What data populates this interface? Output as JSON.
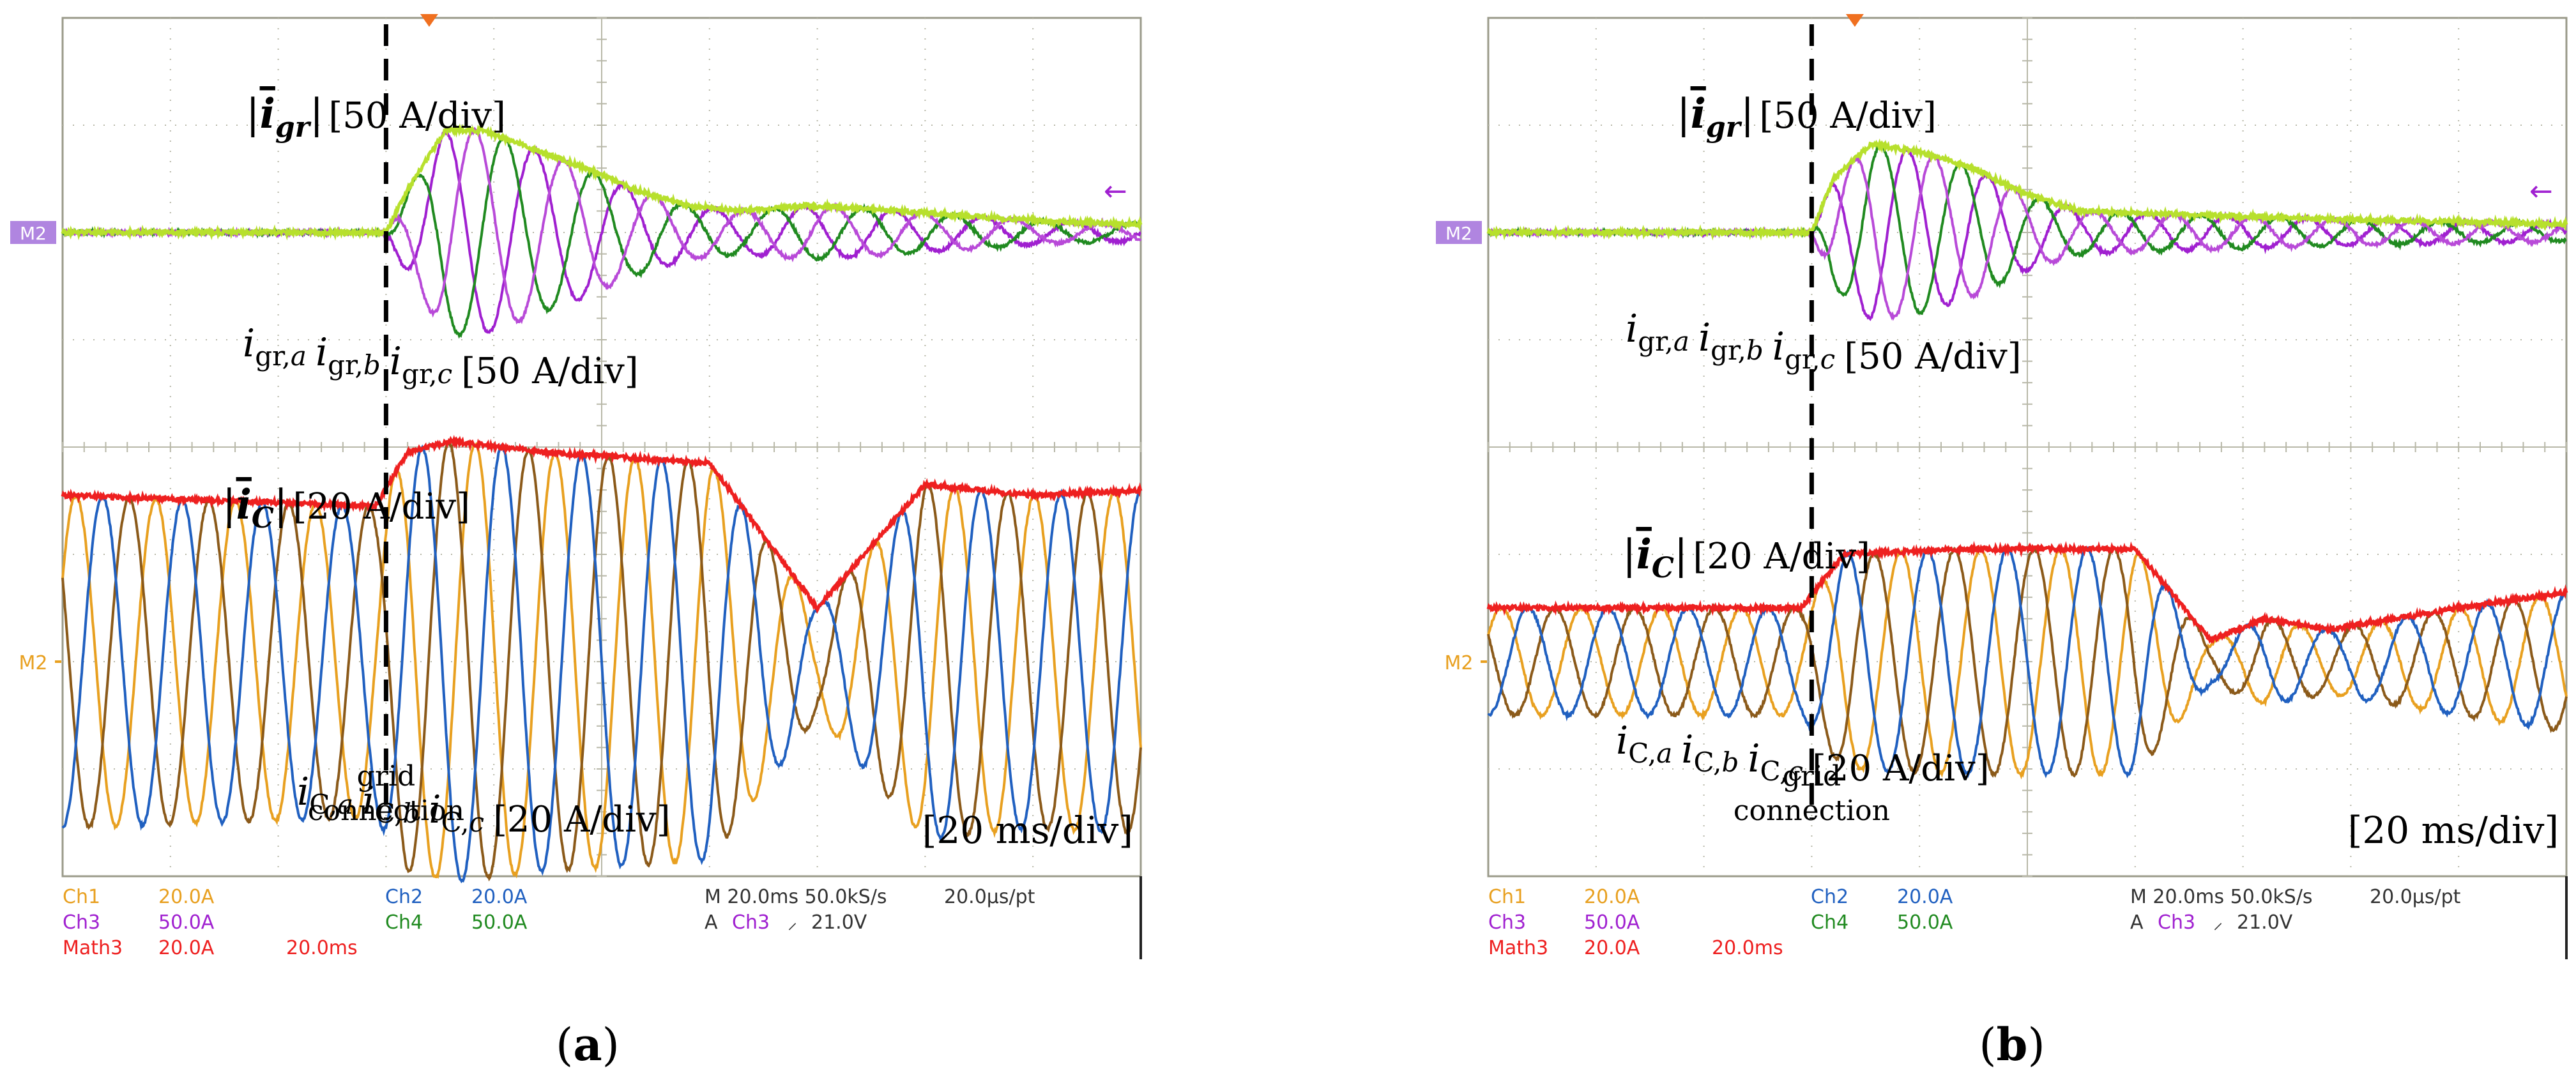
{
  "chart_data": [
    {
      "type": "line",
      "panel_label": "a",
      "title": "",
      "xlabel": "",
      "ylabel": "",
      "grid": true,
      "divisions": {
        "x": 10,
        "y": 8
      },
      "time_div_label": "[20 ms/div]",
      "event": {
        "label_line1": "grid",
        "label_line2": "connection",
        "time_div": 3.0
      },
      "top_traces": {
        "magnitude_label": {
          "symbol": "i",
          "subscript": "gr",
          "scale": "[50 A/div]"
        },
        "phase_label": {
          "a": "i",
          "a_sub": "gr,",
          "a_ph": "a",
          "b": "i",
          "b_sub": "gr,",
          "b_ph": "b",
          "c": "i",
          "c_sub": "gr,",
          "c_ph": "c",
          "scale": "[50 A/div]"
        },
        "marker_label": "M2",
        "trigger_level_mark": "←",
        "series": [
          {
            "name": "|igr|",
            "color": "#b7e02d",
            "unit": "div",
            "kind": "envelope",
            "points": [
              [
                0,
                0
              ],
              [
                3.0,
                0
              ],
              [
                3.2,
                0.4
              ],
              [
                3.55,
                0.95
              ],
              [
                3.9,
                0.95
              ],
              [
                4.3,
                0.8
              ],
              [
                4.8,
                0.62
              ],
              [
                5.3,
                0.4
              ],
              [
                5.8,
                0.25
              ],
              [
                6.3,
                0.2
              ],
              [
                6.9,
                0.25
              ],
              [
                7.5,
                0.22
              ],
              [
                8.3,
                0.16
              ],
              [
                9.2,
                0.1
              ],
              [
                10,
                0.08
              ]
            ]
          },
          {
            "name": "igr,a",
            "color": "#a020d0",
            "unit": "div",
            "kind": "sine",
            "env_ref": 0,
            "freq_per_div": 1.2,
            "phase_deg": 0
          },
          {
            "name": "igr,b",
            "color": "#208a20",
            "unit": "div",
            "kind": "sine",
            "env_ref": 0,
            "freq_per_div": 1.2,
            "phase_deg": 120
          },
          {
            "name": "igr,c",
            "color": "#b84ad8",
            "unit": "div",
            "kind": "sine",
            "env_ref": 0,
            "freq_per_div": 1.2,
            "phase_deg": 240
          }
        ]
      },
      "bottom_traces": {
        "magnitude_label": {
          "symbol": "i",
          "subscript": "C",
          "scale": "[20 A/div]"
        },
        "phase_label": {
          "a": "i",
          "a_sub": "C,",
          "a_ph": "a",
          "b": "i",
          "b_sub": "C,",
          "b_ph": "b",
          "c": "i",
          "c_sub": "C,",
          "c_ph": "c",
          "scale": "[20 A/div]"
        },
        "marker_label": "M2",
        "series": [
          {
            "name": "|iC|",
            "color": "#ee2020",
            "unit": "div",
            "kind": "envelope",
            "points": [
              [
                0,
                1.55
              ],
              [
                2.9,
                1.45
              ],
              [
                3.2,
                1.95
              ],
              [
                3.6,
                2.05
              ],
              [
                4.5,
                1.95
              ],
              [
                6.0,
                1.85
              ],
              [
                7.0,
                0.5
              ],
              [
                8.0,
                1.65
              ],
              [
                9.0,
                1.55
              ],
              [
                10,
                1.6
              ]
            ]
          },
          {
            "name": "iC,a",
            "color": "#e8a020",
            "unit": "div",
            "kind": "sine",
            "env_ref": 0,
            "freq_per_div": 1.35,
            "phase_deg": 30
          },
          {
            "name": "iC,b",
            "color": "#8b5a1a",
            "unit": "div",
            "kind": "sine",
            "env_ref": 0,
            "freq_per_div": 1.35,
            "phase_deg": 150
          },
          {
            "name": "iC,c",
            "color": "#2060c0",
            "unit": "div",
            "kind": "sine",
            "env_ref": 0,
            "freq_per_div": 1.35,
            "phase_deg": 270
          }
        ]
      },
      "readout": {
        "ch1_label": "Ch1",
        "ch1_value": "20.0A",
        "ch3_label": "Ch3",
        "ch3_value": "50.0A",
        "math3_label": "Math3",
        "math3_value": "20.0A",
        "math3_time": "20.0ms",
        "ch2_label": "Ch2",
        "ch2_value": "20.0A",
        "ch4_label": "Ch4",
        "ch4_value": "50.0A",
        "timebase": "M 20.0ms 50.0kS/s",
        "per_pt": "20.0μs/pt",
        "trigger": "A",
        "trigger_channel": "Ch3",
        "trigger_slope": "⸝",
        "trigger_level": "21.0V"
      },
      "readout_colors": {
        "ch1": "#e8a020",
        "ch2": "#2060c0",
        "ch3": "#a020d0",
        "ch4": "#208a20",
        "math3": "#ee2020",
        "text": "#333333"
      }
    },
    {
      "type": "line",
      "panel_label": "b",
      "title": "",
      "xlabel": "",
      "ylabel": "",
      "grid": true,
      "divisions": {
        "x": 10,
        "y": 8
      },
      "time_div_label": "[20 ms/div]",
      "event": {
        "label_line1": "grid",
        "label_line2": "connection",
        "time_div": 3.0
      },
      "top_traces": {
        "magnitude_label": {
          "symbol": "i",
          "subscript": "gr",
          "scale": "[50 A/div]"
        },
        "phase_label": {
          "a": "i",
          "a_sub": "gr,",
          "a_ph": "a",
          "b": "i",
          "b_sub": "gr,",
          "b_ph": "b",
          "c": "i",
          "c_sub": "gr,",
          "c_ph": "c",
          "scale": "[50 A/div]"
        },
        "marker_label": "M2",
        "trigger_level_mark": "←",
        "series": [
          {
            "name": "|igr|",
            "color": "#b7e02d",
            "unit": "div",
            "kind": "envelope",
            "points": [
              [
                0,
                0
              ],
              [
                3.0,
                0
              ],
              [
                3.2,
                0.5
              ],
              [
                3.55,
                0.82
              ],
              [
                4.0,
                0.75
              ],
              [
                4.5,
                0.6
              ],
              [
                5.0,
                0.35
              ],
              [
                5.5,
                0.2
              ],
              [
                6.0,
                0.18
              ],
              [
                7.0,
                0.15
              ],
              [
                8.0,
                0.12
              ],
              [
                9.0,
                0.1
              ],
              [
                10,
                0.08
              ]
            ]
          },
          {
            "name": "igr,a",
            "color": "#a020d0",
            "unit": "div",
            "kind": "sine",
            "env_ref": 0,
            "freq_per_div": 1.35,
            "phase_deg": 0
          },
          {
            "name": "igr,b",
            "color": "#208a20",
            "unit": "div",
            "kind": "sine",
            "env_ref": 0,
            "freq_per_div": 1.35,
            "phase_deg": 120
          },
          {
            "name": "igr,c",
            "color": "#b84ad8",
            "unit": "div",
            "kind": "sine",
            "env_ref": 0,
            "freq_per_div": 1.35,
            "phase_deg": 240
          }
        ]
      },
      "bottom_traces": {
        "magnitude_label": {
          "symbol": "i",
          "subscript": "C",
          "scale": "[20 A/div]"
        },
        "phase_label": {
          "a": "i",
          "a_sub": "C,",
          "a_ph": "a",
          "b": "i",
          "b_sub": "C,",
          "b_ph": "b",
          "c": "i",
          "c_sub": "C,",
          "c_ph": "c",
          "scale": "[20 A/div]"
        },
        "marker_label": "M2",
        "series": [
          {
            "name": "|iC|",
            "color": "#ee2020",
            "unit": "div",
            "kind": "envelope",
            "points": [
              [
                0,
                0.5
              ],
              [
                2.9,
                0.5
              ],
              [
                3.3,
                1.0
              ],
              [
                4.5,
                1.05
              ],
              [
                6.0,
                1.05
              ],
              [
                6.7,
                0.2
              ],
              [
                7.2,
                0.4
              ],
              [
                7.8,
                0.3
              ],
              [
                9.0,
                0.5
              ],
              [
                10,
                0.65
              ]
            ]
          },
          {
            "name": "iC,a",
            "color": "#e8a020",
            "unit": "div",
            "kind": "sine",
            "env_ref": 0,
            "freq_per_div": 1.35,
            "phase_deg": 30
          },
          {
            "name": "iC,b",
            "color": "#8b5a1a",
            "unit": "div",
            "kind": "sine",
            "env_ref": 0,
            "freq_per_div": 1.35,
            "phase_deg": 150
          },
          {
            "name": "iC,c",
            "color": "#2060c0",
            "unit": "div",
            "kind": "sine",
            "env_ref": 0,
            "freq_per_div": 1.35,
            "phase_deg": 270
          }
        ]
      },
      "readout": {
        "ch1_label": "Ch1",
        "ch1_value": "20.0A",
        "ch3_label": "Ch3",
        "ch3_value": "50.0A",
        "math3_label": "Math3",
        "math3_value": "20.0A",
        "math3_time": "20.0ms",
        "ch2_label": "Ch2",
        "ch2_value": "20.0A",
        "ch4_label": "Ch4",
        "ch4_value": "50.0A",
        "timebase": "M 20.0ms 50.0kS/s",
        "per_pt": "20.0μs/pt",
        "trigger": "A",
        "trigger_channel": "Ch3",
        "trigger_slope": "⸝",
        "trigger_level": "21.0V"
      },
      "readout_colors": {
        "ch1": "#e8a020",
        "ch2": "#2060c0",
        "ch3": "#a020d0",
        "ch4": "#208a20",
        "math3": "#ee2020",
        "text": "#333333"
      }
    }
  ],
  "colors": {
    "grid": "#b8b8a8",
    "frame": "#9a9a8a",
    "dash": "#000000",
    "text": "#000000",
    "marker_bg": "#b085e0",
    "marker_text": "#ffffff",
    "trigger_mark": "#f07020",
    "orange_marker": "#e8a020"
  }
}
